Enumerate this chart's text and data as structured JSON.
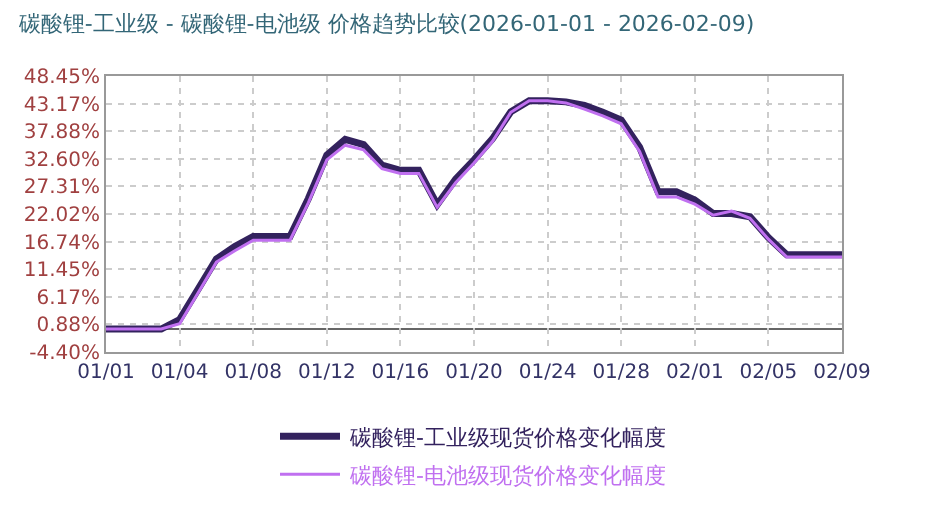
{
  "chart_data": {
    "type": "line",
    "title": "碳酸锂-工业级 - 碳酸锂-电池级 价格趋势比较(2026-01-01 - 2026-02-09)",
    "categories": [
      "01/01",
      null,
      null,
      null,
      "01/04",
      null,
      null,
      null,
      "01/08",
      null,
      null,
      null,
      "01/12",
      null,
      null,
      null,
      "01/16",
      null,
      null,
      null,
      "01/20",
      null,
      null,
      null,
      "01/24",
      null,
      null,
      null,
      "01/28",
      null,
      null,
      null,
      "02/01",
      null,
      null,
      null,
      "02/05",
      null,
      null,
      null,
      "02/09"
    ],
    "ylim": [
      -4.4,
      48.45
    ],
    "yticks": [
      {
        "value": -4.4,
        "label": "-4.40%"
      },
      {
        "value": 0.88,
        "label": "0.88%"
      },
      {
        "value": 6.17,
        "label": "6.17%"
      },
      {
        "value": 11.45,
        "label": "11.45%"
      },
      {
        "value": 16.74,
        "label": "16.74%"
      },
      {
        "value": 22.02,
        "label": "22.02%"
      },
      {
        "value": 27.31,
        "label": "27.31%"
      },
      {
        "value": 32.6,
        "label": "32.60%"
      },
      {
        "value": 37.88,
        "label": "37.88%"
      },
      {
        "value": 43.17,
        "label": "43.17%"
      },
      {
        "value": 48.45,
        "label": "48.45%"
      }
    ],
    "grid": true,
    "legend": "bottom",
    "marker": "none",
    "line_style": "solid",
    "ref_lines": [
      {
        "axis": "y",
        "value": 0,
        "color": "#666666"
      }
    ],
    "series": [
      {
        "name": "碳酸锂-工业级现货价格变化幅度",
        "color": "#33225e",
        "values": [
          0,
          0,
          0,
          0,
          1.8,
          7.6,
          13.4,
          15.8,
          17.7,
          17.7,
          17.7,
          25.0,
          33.3,
          36.3,
          35.3,
          31.4,
          30.4,
          30.4,
          23.8,
          28.7,
          32.4,
          36.4,
          41.6,
          43.7,
          43.7,
          43.5,
          42.8,
          41.5,
          40.0,
          34.8,
          26.3,
          26.3,
          24.7,
          22.1,
          22.1,
          21.5,
          17.5,
          14.2,
          14.2,
          14.2,
          14.2
        ]
      },
      {
        "name": "碳酸锂-电池级现货价格变化幅度",
        "color": "#c070f0",
        "values": [
          0,
          0,
          0,
          0,
          1.0,
          6.9,
          12.8,
          15.0,
          17.0,
          17.0,
          17.0,
          24.2,
          32.4,
          35.2,
          34.3,
          30.7,
          29.8,
          29.8,
          23.3,
          28.0,
          31.8,
          35.9,
          41.5,
          43.7,
          43.7,
          43.3,
          42.1,
          40.8,
          39.3,
          34.0,
          25.3,
          25.3,
          23.9,
          21.8,
          22.6,
          21.2,
          17.2,
          13.8,
          13.8,
          13.8,
          13.8
        ]
      }
    ]
  }
}
